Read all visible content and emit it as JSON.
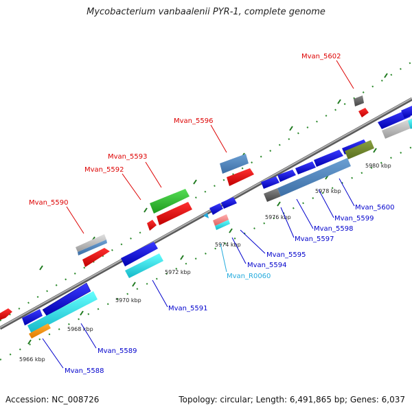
{
  "title": "Mycobacterium vanbaalenii PYR-1, complete genome",
  "footer": {
    "accession": "Accession: NC_008726",
    "summary": "Topology: circular; Length: 6,491,865 bp; Genes: 6,037"
  },
  "colors": {
    "backbone": "#8a8a8a",
    "tick": "#1f7a1f",
    "dot": "#2e8b2e",
    "label_red": "#dd0000",
    "label_blue": "#0000cc",
    "label_cyan": "#22aadd"
  },
  "kbp_labels": [
    "5966 kbp",
    "5968 kbp",
    "5970 kbp",
    "5972 kbp",
    "5974 kbp",
    "5976 kbp",
    "5978 kbp",
    "5980 kbp"
  ],
  "gene_labels_red": [
    "Mvan_5590",
    "Mvan_5592",
    "Mvan_5593",
    "Mvan_5596",
    "Mvan_5602"
  ],
  "gene_labels_blue": [
    "Mvan_5588",
    "Mvan_5589",
    "Mvan_5591",
    "Mvan_5594",
    "Mvan_5595",
    "Mvan_5597",
    "Mvan_5598",
    "Mvan_5599",
    "Mvan_5600"
  ],
  "gene_labels_cyan": [
    "Mvan_R0060"
  ]
}
